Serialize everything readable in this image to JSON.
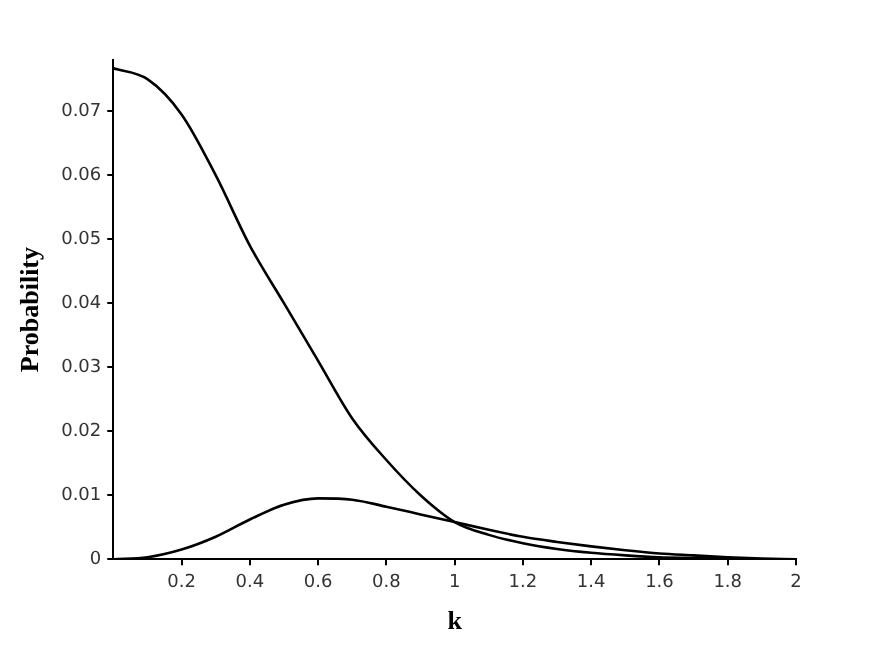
{
  "chart_data": {
    "type": "line",
    "xlabel": "k",
    "ylabel": "Probability",
    "x": [
      0,
      0.1,
      0.2,
      0.3,
      0.4,
      0.5,
      0.6,
      0.7,
      0.8,
      0.9,
      1.0,
      1.1,
      1.2,
      1.3,
      1.4,
      1.5,
      1.6,
      1.7,
      1.8,
      1.9,
      2.0
    ],
    "series": [
      {
        "color": "#000000",
        "values": [
          0.0767,
          0.075,
          0.0695,
          0.06,
          0.049,
          0.04,
          0.031,
          0.022,
          0.0155,
          0.01,
          0.0058,
          0.0038,
          0.0025,
          0.0016,
          0.001,
          0.0006,
          0.0003,
          0.0002,
          0.0001,
          0,
          0
        ]
      },
      {
        "color": "#000000",
        "values": [
          0,
          0.0003,
          0.0015,
          0.0035,
          0.0062,
          0.0085,
          0.0095,
          0.0093,
          0.0082,
          0.007,
          0.0058,
          0.0046,
          0.0035,
          0.0027,
          0.002,
          0.0014,
          0.0009,
          0.0006,
          0.0003,
          0.0001,
          0
        ]
      }
    ],
    "xlim": [
      0,
      2
    ],
    "xticks": [
      0.2,
      0.4,
      0.6,
      0.8,
      1,
      1.2,
      1.4,
      1.6,
      1.8,
      2
    ],
    "ylim": [
      0,
      0.078
    ],
    "yticks": [
      0,
      0.01,
      0.02,
      0.03,
      0.04,
      0.05,
      0.06,
      0.07
    ],
    "grid": false,
    "legend": false,
    "marker": "none",
    "line_style": "solid"
  }
}
